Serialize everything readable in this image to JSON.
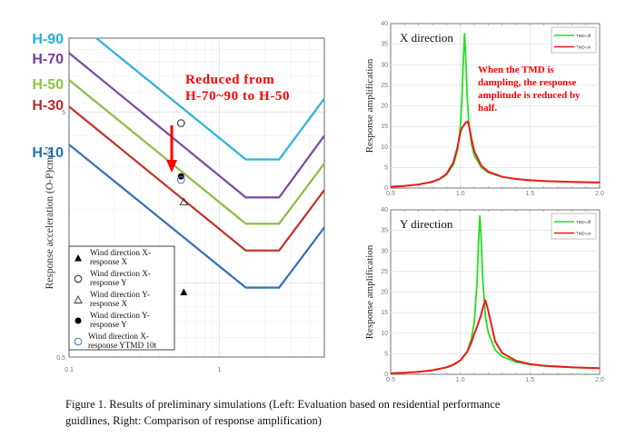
{
  "caption": {
    "line1": "Figure 1. Results of preliminary simulations (Left: Evaluation based on residential performance",
    "line2": "guidlines, Right: Comparison of response amplification)"
  },
  "chart_data": [
    {
      "type": "line",
      "x_scale": "log",
      "y_scale": "log",
      "xlim": [
        0.1,
        5
      ],
      "ylim": [
        0.5,
        10
      ],
      "ylabel": "Response acceleration (O-P)cm/s²",
      "xlabel": "",
      "x_ticks": [
        "0.1",
        "1"
      ],
      "y_ticks": [
        "5",
        "0.5"
      ],
      "x_tick_values": [
        0.1,
        1
      ],
      "y_tick_values": [
        5,
        0.5
      ],
      "grid": true,
      "annotation": {
        "line1": "Reduced from",
        "line2": "H-70~90 to H-50",
        "color": "#ff0000"
      },
      "arrow": {
        "from": [
          0.52,
          4.0
        ],
        "to": [
          0.52,
          2.6
        ],
        "color": "#ff0000"
      },
      "series": [
        {
          "name": "H-90",
          "color": "#2fb4d8",
          "points": [
            [
              0.152,
              10
            ],
            [
              1.5,
              3.2
            ],
            [
              2.5,
              3.2
            ],
            [
              5,
              5.67
            ]
          ]
        },
        {
          "name": "H-70",
          "color": "#7e4fa3",
          "points": [
            [
              0.1,
              8.7
            ],
            [
              1.5,
              2.24
            ],
            [
              2.5,
              2.24
            ],
            [
              5,
              4.0
            ]
          ]
        },
        {
          "name": "H-50",
          "color": "#8dbf4a",
          "points": [
            [
              0.1,
              6.75
            ],
            [
              1.5,
              1.75
            ],
            [
              2.5,
              1.75
            ],
            [
              5,
              3.08
            ]
          ]
        },
        {
          "name": "H-30",
          "color": "#c0392f",
          "points": [
            [
              0.1,
              5.26
            ],
            [
              1.5,
              1.36
            ],
            [
              2.5,
              1.36
            ],
            [
              5,
              2.4
            ]
          ]
        },
        {
          "name": "H-10",
          "color": "#3c72b8",
          "points": [
            [
              0.1,
              3.68
            ],
            [
              1.5,
              0.96
            ],
            [
              2.5,
              0.96
            ],
            [
              5,
              1.69
            ]
          ]
        }
      ],
      "label_colors": {
        "H-90": "#1fb0e8",
        "H-70": "#7a3a9e",
        "H-50": "#8cc63f",
        "H-30": "#c1272d",
        "H-10": "#1f6fb8"
      },
      "markers": [
        {
          "name": "Wind direction X-response X",
          "label1": "Wind direction X-",
          "label2": "response X",
          "symbol": "filled-triangle",
          "color": "#000000",
          "x": 0.58,
          "y": 0.92
        },
        {
          "name": "Wind direction X-response Y",
          "label1": "Wind direction X-",
          "label2": "response Y",
          "symbol": "open-circle",
          "color": "#333333",
          "x": 0.556,
          "y": 4.5
        },
        {
          "name": "Wind direction Y-response X",
          "label1": "Wind direction Y-",
          "label2": "response X",
          "symbol": "open-triangle",
          "color": "#333333",
          "x": 0.58,
          "y": 2.15
        },
        {
          "name": "Wind direction Y-response Y",
          "label1": "Wind direction Y-",
          "label2": "response Y",
          "symbol": "filled-circle",
          "color": "#000000",
          "x": 0.556,
          "y": 2.73
        },
        {
          "name": "Wind direction X-response YTMD 10t",
          "label1": "Wind direction X-",
          "label2": "response YTMD 10t",
          "symbol": "open-circle",
          "color": "#4a7fc1",
          "x": 0.556,
          "y": 2.64
        }
      ],
      "legend_position": "bottom-left"
    },
    {
      "type": "line",
      "title": "X direction",
      "ylabel": "Response amplification",
      "xlim": [
        0.5,
        2.0
      ],
      "ylim": [
        0,
        40
      ],
      "x_ticks": [
        "0.5",
        "1.0",
        "1.5",
        "2.0"
      ],
      "y_ticks": [
        "0",
        "5",
        "10",
        "15",
        "20",
        "25",
        "30",
        "35",
        "40"
      ],
      "grid": true,
      "legend_position": "top-right",
      "annotation": {
        "lines": [
          "When the TMD is",
          "dampling, the response",
          "amplitude is reduced by",
          "half."
        ],
        "color": "#ff0000"
      },
      "series": [
        {
          "name": "TMD-off",
          "color": "#22e01f",
          "x": [
            0.5,
            0.6,
            0.7,
            0.8,
            0.85,
            0.9,
            0.95,
            0.98,
            1.0,
            1.01,
            1.02,
            1.03,
            1.04,
            1.05,
            1.06,
            1.08,
            1.1,
            1.15,
            1.2,
            1.3,
            1.4,
            1.5,
            1.6,
            1.8,
            2.0
          ],
          "y": [
            0.31,
            0.51,
            0.86,
            1.52,
            2.13,
            3.23,
            5.7,
            9.24,
            14.98,
            20.7,
            30.0,
            37.6,
            30.7,
            21.8,
            16.3,
            10.65,
            7.98,
            5.05,
            3.8,
            2.69,
            2.18,
            1.89,
            1.71,
            1.49,
            1.36
          ]
        },
        {
          "name": "TMD-on",
          "color": "#f01818",
          "x": [
            0.5,
            0.6,
            0.7,
            0.8,
            0.85,
            0.9,
            0.95,
            0.98,
            1.0,
            1.01,
            1.02,
            1.03,
            1.04,
            1.05,
            1.06,
            1.08,
            1.1,
            1.15,
            1.2,
            1.3,
            1.4,
            1.5,
            1.6,
            1.8,
            2.0
          ],
          "y": [
            0.31,
            0.52,
            0.87,
            1.55,
            2.2,
            3.4,
            6.2,
            10,
            13.5,
            14.5,
            15.0,
            15.5,
            16.0,
            16.2,
            15.5,
            12,
            9,
            5.5,
            4.0,
            2.75,
            2.2,
            1.9,
            1.72,
            1.5,
            1.37
          ]
        }
      ]
    },
    {
      "type": "line",
      "title": "Y direction",
      "ylabel": "Response amplification",
      "xlim": [
        0.5,
        2.0
      ],
      "ylim": [
        0,
        40
      ],
      "x_ticks": [
        "0.5",
        "1.0",
        "1.5",
        "2.0"
      ],
      "y_ticks": [
        "0",
        "5",
        "10",
        "15",
        "20",
        "25",
        "30",
        "35",
        "40"
      ],
      "grid": true,
      "legend_position": "top-right",
      "series": [
        {
          "name": "TMD-off",
          "color": "#22e01f",
          "x": [
            0.5,
            0.6,
            0.7,
            0.8,
            0.9,
            0.95,
            1.0,
            1.05,
            1.08,
            1.1,
            1.12,
            1.13,
            1.14,
            1.15,
            1.16,
            1.18,
            1.2,
            1.25,
            1.3,
            1.4,
            1.5,
            1.6,
            1.8,
            2.0
          ],
          "y": [
            0.24,
            0.38,
            0.6,
            0.97,
            1.65,
            2.27,
            3.34,
            5.6,
            8.76,
            12.7,
            22.4,
            31.6,
            38.5,
            32.7,
            23.6,
            14.0,
            10.2,
            5.94,
            4.33,
            2.97,
            2.37,
            2.03,
            1.67,
            1.48
          ]
        },
        {
          "name": "TMD-on",
          "color": "#f01818",
          "x": [
            0.5,
            0.6,
            0.7,
            0.8,
            0.9,
            0.95,
            1.0,
            1.05,
            1.08,
            1.1,
            1.12,
            1.13,
            1.14,
            1.15,
            1.16,
            1.18,
            1.2,
            1.25,
            1.3,
            1.4,
            1.5,
            1.6,
            1.8,
            2.0
          ],
          "y": [
            0.24,
            0.39,
            0.62,
            1.0,
            1.7,
            2.35,
            3.4,
            5.5,
            7.8,
            9.8,
            11.6,
            12.6,
            13.5,
            14.6,
            16,
            18,
            15.5,
            8,
            5.2,
            3.3,
            2.5,
            2.1,
            1.7,
            1.5
          ]
        }
      ]
    }
  ]
}
